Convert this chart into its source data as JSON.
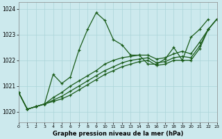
{
  "title": "Graphe pression niveau de la mer (hPa)",
  "bg_color": "#cce9ed",
  "grid_color": "#aad4d8",
  "line_color": "#1a5c1a",
  "xlim": [
    0,
    23
  ],
  "ylim": [
    1019.6,
    1024.25
  ],
  "yticks": [
    1020,
    1021,
    1022,
    1023,
    1024
  ],
  "xtick_labels": [
    "0",
    "1",
    "2",
    "3",
    "4",
    "5",
    "6",
    "7",
    "8",
    "9",
    "10",
    "11",
    "12",
    "13",
    "14",
    "15",
    "16",
    "17",
    "18",
    "19",
    "20",
    "21",
    "22",
    "23"
  ],
  "series": {
    "main": {
      "x": [
        0,
        1,
        2,
        3,
        4,
        5,
        6,
        7,
        8,
        9,
        10,
        11,
        12,
        13,
        14,
        15,
        16,
        17,
        18,
        19,
        20,
        21,
        22
      ],
      "y": [
        1020.75,
        1020.1,
        1020.2,
        1020.3,
        1021.45,
        1021.1,
        1021.35,
        1022.4,
        1023.2,
        1023.85,
        1023.55,
        1022.8,
        1022.6,
        1022.2,
        1022.2,
        1021.85,
        1021.85,
        1022.05,
        1022.5,
        1022.0,
        1022.9,
        1023.2,
        1023.6
      ]
    },
    "linear_low": {
      "x": [
        0,
        1,
        2,
        3,
        4,
        5,
        6,
        7,
        8,
        9,
        10,
        11,
        12,
        13,
        14,
        15,
        16,
        17,
        18,
        19,
        20,
        21,
        22,
        23
      ],
      "y": [
        1020.75,
        1020.1,
        1020.2,
        1020.3,
        1020.4,
        1020.5,
        1020.65,
        1020.85,
        1021.05,
        1021.25,
        1021.45,
        1021.6,
        1021.75,
        1021.85,
        1021.95,
        1022.0,
        1021.8,
        1021.85,
        1022.0,
        1022.0,
        1022.0,
        1022.45,
        1023.2,
        1023.6
      ]
    },
    "linear_mid": {
      "x": [
        0,
        1,
        2,
        3,
        4,
        5,
        6,
        7,
        8,
        9,
        10,
        11,
        12,
        13,
        14,
        15,
        16,
        17,
        18,
        19,
        20,
        21,
        22,
        23
      ],
      "y": [
        1020.75,
        1020.1,
        1020.2,
        1020.3,
        1020.45,
        1020.6,
        1020.8,
        1021.0,
        1021.2,
        1021.4,
        1021.6,
        1021.75,
        1021.9,
        1022.0,
        1022.05,
        1022.1,
        1021.9,
        1021.95,
        1022.1,
        1022.15,
        1022.1,
        1022.55,
        1023.2,
        1023.6
      ]
    },
    "linear_high": {
      "x": [
        0,
        1,
        2,
        3,
        4,
        5,
        6,
        7,
        8,
        9,
        10,
        11,
        12,
        13,
        14,
        15,
        16,
        17,
        18,
        19,
        20,
        21,
        22,
        23
      ],
      "y": [
        1020.75,
        1020.1,
        1020.2,
        1020.3,
        1020.55,
        1020.75,
        1021.0,
        1021.2,
        1021.4,
        1021.6,
        1021.85,
        1022.0,
        1022.1,
        1022.15,
        1022.2,
        1022.2,
        1022.05,
        1022.1,
        1022.25,
        1022.35,
        1022.25,
        1022.7,
        1023.2,
        1023.6
      ]
    }
  }
}
